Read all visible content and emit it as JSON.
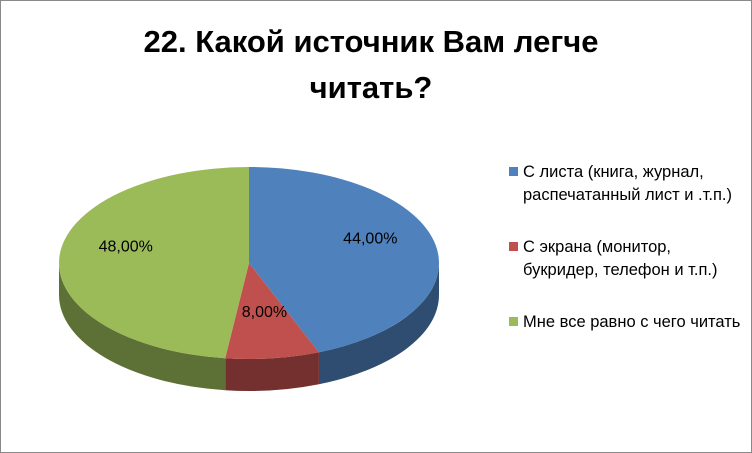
{
  "chart_data": {
    "type": "pie3d",
    "title": "22. Какой источник Вам легче читать?",
    "categories": [
      "С листа (книга, журнал, распечатанный лист и .т.п.)",
      "С экрана (монитор, букридер, телефон и т.п.)",
      "Мне все равно с чего читать"
    ],
    "values": [
      44,
      8,
      48
    ],
    "value_labels": [
      "44,00%",
      "8,00%",
      "48,00%"
    ],
    "colors": [
      "#4f81bd",
      "#c0504d",
      "#9bbb59"
    ],
    "legend": "right"
  }
}
